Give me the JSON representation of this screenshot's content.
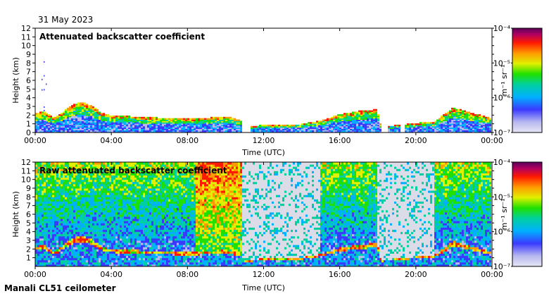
{
  "header": {
    "date": "31 May 2023"
  },
  "footer": {
    "site": "Manali CL51 ceilometer"
  },
  "chart_data": [
    {
      "type": "heatmap",
      "title": "Attenuated backscatter coefficient",
      "xlabel": "Time (UTC)",
      "ylabel": "Height (km)",
      "x_ticks": [
        "00:00",
        "04:00",
        "08:00",
        "12:00",
        "16:00",
        "20:00",
        "00:00"
      ],
      "y_ticks": [
        "0",
        "1",
        "2",
        "3",
        "4",
        "5",
        "6",
        "7",
        "8",
        "9",
        "10",
        "11",
        "12"
      ],
      "ylim": [
        0,
        12
      ],
      "colorbar": {
        "label": "m⁻¹ sr⁻¹",
        "scale": "log",
        "ticks": [
          "10⁻⁴",
          "10⁻⁵",
          "10⁻⁶",
          "10⁻⁷"
        ],
        "range": [
          1e-07,
          0.0001
        ]
      },
      "boundary_layer_top_km": [
        [
          0.0,
          2.2
        ],
        [
          0.5,
          2.3
        ],
        [
          1.0,
          1.6
        ],
        [
          1.5,
          2.4
        ],
        [
          2.0,
          3.2
        ],
        [
          2.5,
          3.4
        ],
        [
          3.0,
          3.0
        ],
        [
          3.5,
          2.2
        ],
        [
          4.0,
          1.9
        ],
        [
          5.0,
          1.8
        ],
        [
          6.0,
          1.7
        ],
        [
          7.0,
          1.6
        ],
        [
          8.0,
          1.5
        ],
        [
          9.0,
          1.6
        ],
        [
          10.0,
          1.8
        ],
        [
          10.8,
          1.4
        ],
        [
          11.0,
          0.5
        ],
        [
          12.0,
          0.8
        ],
        [
          14.0,
          0.9
        ],
        [
          15.0,
          1.3
        ],
        [
          16.0,
          2.0
        ],
        [
          17.0,
          2.4
        ],
        [
          18.0,
          2.6
        ],
        [
          18.2,
          0.6
        ],
        [
          19.5,
          0.9
        ],
        [
          21.0,
          1.2
        ],
        [
          22.0,
          2.8
        ],
        [
          23.0,
          2.2
        ],
        [
          24.0,
          1.6
        ]
      ],
      "data_gaps_utc": [
        [
          10.9,
          11.3
        ],
        [
          18.2,
          18.6
        ],
        [
          19.2,
          19.4
        ]
      ]
    },
    {
      "type": "heatmap",
      "title": "Raw attenuated backscatter coefficient",
      "xlabel": "Time (UTC)",
      "ylabel": "Height (km)",
      "x_ticks": [
        "00:00",
        "04:00",
        "08:00",
        "12:00",
        "16:00",
        "20:00",
        "00:00"
      ],
      "y_ticks": [
        "1",
        "2",
        "3",
        "4",
        "5",
        "6",
        "7",
        "8",
        "9",
        "10",
        "11",
        "12"
      ],
      "ylim": [
        0,
        12
      ],
      "colorbar": {
        "label": "m⁻¹ sr⁻¹",
        "scale": "log",
        "ticks": [
          "10⁻⁴",
          "10⁻⁵",
          "10⁻⁶",
          "10⁻⁷"
        ],
        "range": [
          1e-07,
          0.0001
        ]
      },
      "noise_free_bands_utc": [
        [
          10.9,
          15.0
        ],
        [
          18.0,
          21.0
        ]
      ],
      "high_signal_window_utc": [
        8.5,
        11.0
      ]
    }
  ]
}
